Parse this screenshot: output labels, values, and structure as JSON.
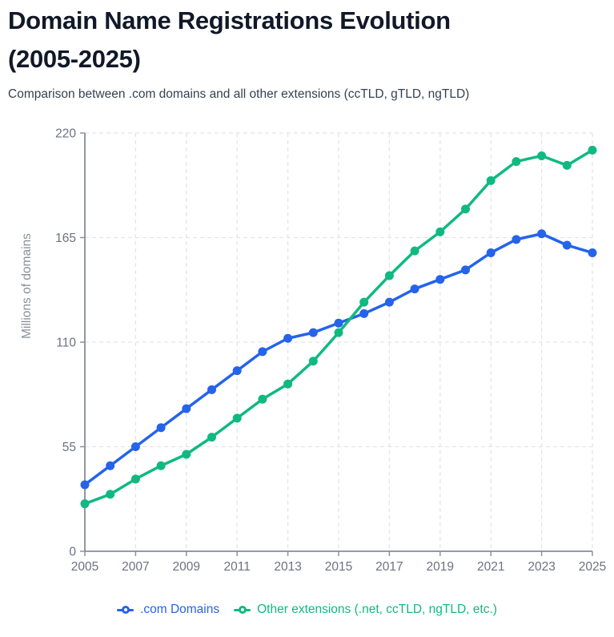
{
  "header": {
    "title_line1": "Domain Name Registrations Evolution",
    "title_line2": "(2005-2025)",
    "subtitle": "Comparison between .com domains and all other extensions (ccTLD, gTLD, ngTLD)"
  },
  "legend": {
    "position": "bottom",
    "items": [
      {
        "label": ".com Domains",
        "color": "#2563eb"
      },
      {
        "label": "Other extensions (.net, ccTLD, ngTLD, etc.)",
        "color": "#10b981"
      }
    ]
  },
  "chart_data": {
    "type": "line",
    "title": "Domain Name Registrations Evolution (2005-2025)",
    "subtitle": "Comparison between .com domains and all other extensions (ccTLD, gTLD, ngTLD)",
    "xlabel": "",
    "ylabel": "Millions of domains",
    "x": [
      2005,
      2006,
      2007,
      2008,
      2009,
      2010,
      2011,
      2012,
      2013,
      2014,
      2015,
      2016,
      2017,
      2018,
      2019,
      2020,
      2021,
      2022,
      2023,
      2024,
      2025
    ],
    "x_tick_labels": [
      "2005",
      "2007",
      "2009",
      "2011",
      "2013",
      "2015",
      "2017",
      "2019",
      "2021",
      "2023",
      "2025"
    ],
    "y_ticks": [
      0,
      55,
      110,
      165,
      220
    ],
    "ylim": [
      0,
      220
    ],
    "grid": true,
    "legend_position": "bottom",
    "marker": "circle",
    "series": [
      {
        "name": ".com Domains",
        "color": "#2563eb",
        "values": [
          35,
          45,
          55,
          65,
          75,
          85,
          95,
          105,
          112,
          115,
          120,
          125,
          131,
          138,
          143,
          148,
          157,
          164,
          167,
          161,
          157
        ]
      },
      {
        "name": "Other extensions (.net, ccTLD, ngTLD, etc.)",
        "color": "#10b981",
        "values": [
          25,
          30,
          38,
          45,
          51,
          60,
          70,
          80,
          88,
          100,
          115,
          131,
          145,
          158,
          168,
          180,
          195,
          205,
          208,
          203,
          211
        ]
      }
    ]
  },
  "colors": {
    "background": "#ffffff",
    "title_text": "#111827",
    "subtitle_text": "#374151",
    "axis_text": "#6b7280",
    "axis_line": "#868c96",
    "gridline": "#e3e5e8"
  }
}
